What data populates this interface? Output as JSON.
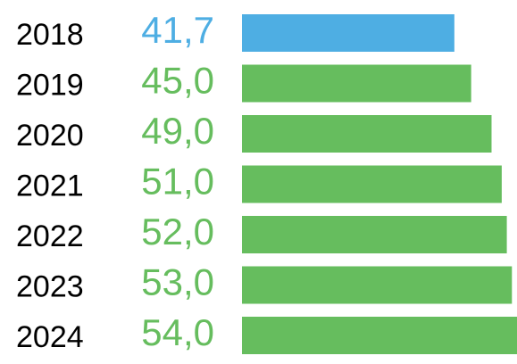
{
  "chart_data": {
    "type": "bar",
    "orientation": "horizontal",
    "categories": [
      "2018",
      "2019",
      "2020",
      "2021",
      "2022",
      "2023",
      "2024"
    ],
    "values": [
      41.7,
      45.0,
      49.0,
      51.0,
      52.0,
      53.0,
      54.0
    ],
    "value_labels": [
      "41,7",
      "45,0",
      "49,0",
      "51,0",
      "52,0",
      "53,0",
      "54,0"
    ],
    "colors": [
      "#4eaee3",
      "#66bd5e",
      "#66bd5e",
      "#66bd5e",
      "#66bd5e",
      "#66bd5e",
      "#66bd5e"
    ]
  }
}
